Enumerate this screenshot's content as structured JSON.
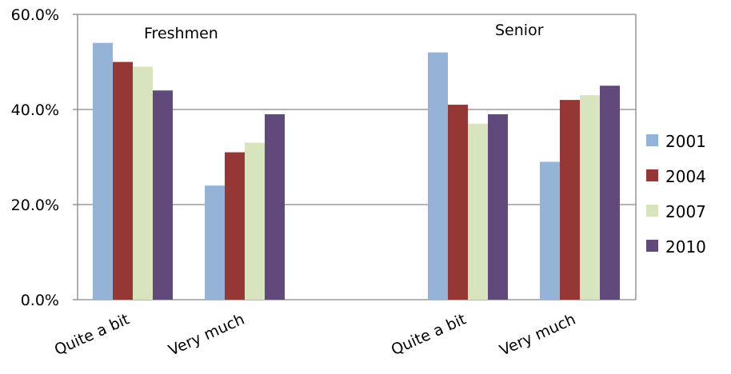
{
  "chart_data": {
    "type": "bar",
    "categories": [
      "Quite a bit",
      "Very much",
      "Quite a bit",
      "Very much"
    ],
    "groups": [
      "Freshmen",
      "Senior"
    ],
    "series": [
      {
        "name": "2001",
        "color": "#95B3D7",
        "values": [
          54,
          24,
          52,
          29
        ]
      },
      {
        "name": "2004",
        "color": "#953735",
        "values": [
          50,
          31,
          41,
          42
        ]
      },
      {
        "name": "2007",
        "color": "#D7E4BD",
        "values": [
          49,
          33,
          37,
          43
        ]
      },
      {
        "name": "2010",
        "color": "#604A7B",
        "values": [
          44,
          39,
          39,
          45
        ]
      }
    ],
    "y_ticks": [
      "0.0%",
      "20.0%",
      "40.0%",
      "60.0%"
    ],
    "ylim": [
      0,
      60
    ],
    "grid": true,
    "legend_position": "right"
  }
}
